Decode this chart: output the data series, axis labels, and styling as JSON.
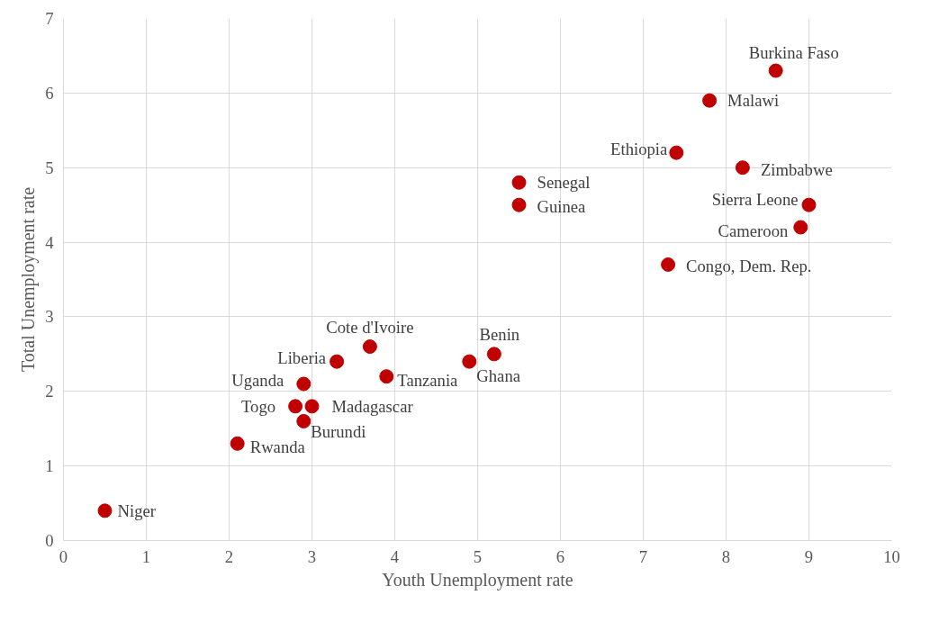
{
  "chart_data": {
    "type": "scatter",
    "xlabel": "Youth Unemployment rate",
    "ylabel": "Total Unemployment rate",
    "xlim": [
      0,
      10
    ],
    "ylim": [
      0,
      7
    ],
    "xticks": [
      0,
      1,
      2,
      3,
      4,
      5,
      6,
      7,
      8,
      9,
      10
    ],
    "yticks": [
      0,
      1,
      2,
      3,
      4,
      5,
      6,
      7
    ],
    "grid": true,
    "legend": false,
    "marker": "circle",
    "series": [
      {
        "name": "Niger",
        "color": "#c00000",
        "x": [
          0.5
        ],
        "values": [
          0.4
        ]
      },
      {
        "name": "Rwanda",
        "color": "#c00000",
        "x": [
          2.1
        ],
        "values": [
          1.3
        ]
      },
      {
        "name": "Burundi",
        "color": "#c00000",
        "x": [
          2.9
        ],
        "values": [
          1.6
        ]
      },
      {
        "name": "Togo",
        "color": "#c00000",
        "x": [
          2.8
        ],
        "values": [
          1.8
        ]
      },
      {
        "name": "Madagascar",
        "color": "#c00000",
        "x": [
          3.0
        ],
        "values": [
          1.8
        ]
      },
      {
        "name": "Uganda",
        "color": "#c00000",
        "x": [
          2.9
        ],
        "values": [
          2.1
        ]
      },
      {
        "name": "Liberia",
        "color": "#c00000",
        "x": [
          3.3
        ],
        "values": [
          2.4
        ]
      },
      {
        "name": "Cote d'Ivoire",
        "color": "#c00000",
        "x": [
          3.7
        ],
        "values": [
          2.6
        ]
      },
      {
        "name": "Tanzania",
        "color": "#c00000",
        "x": [
          3.9
        ],
        "values": [
          2.2
        ]
      },
      {
        "name": "Ghana",
        "color": "#c00000",
        "x": [
          4.9
        ],
        "values": [
          2.4
        ]
      },
      {
        "name": "Benin",
        "color": "#c00000",
        "x": [
          5.2
        ],
        "values": [
          2.5
        ]
      },
      {
        "name": "Senegal",
        "color": "#c00000",
        "x": [
          5.5
        ],
        "values": [
          4.8
        ]
      },
      {
        "name": "Guinea",
        "color": "#c00000",
        "x": [
          5.5
        ],
        "values": [
          4.5
        ]
      },
      {
        "name": "Ethiopia",
        "color": "#c00000",
        "x": [
          7.4
        ],
        "values": [
          5.2
        ]
      },
      {
        "name": "Congo, Dem. Rep.",
        "color": "#c00000",
        "x": [
          7.3
        ],
        "values": [
          3.7
        ]
      },
      {
        "name": "Malawi",
        "color": "#c00000",
        "x": [
          7.8
        ],
        "values": [
          5.9
        ]
      },
      {
        "name": "Zimbabwe",
        "color": "#c00000",
        "x": [
          8.2
        ],
        "values": [
          5.0
        ]
      },
      {
        "name": "Burkina Faso",
        "color": "#c00000",
        "x": [
          8.6
        ],
        "values": [
          6.3
        ]
      },
      {
        "name": "Sierra Leone",
        "color": "#c00000",
        "x": [
          9.0
        ],
        "values": [
          4.5
        ]
      },
      {
        "name": "Cameroon",
        "color": "#c00000",
        "x": [
          8.9
        ],
        "values": [
          4.2
        ]
      }
    ]
  }
}
